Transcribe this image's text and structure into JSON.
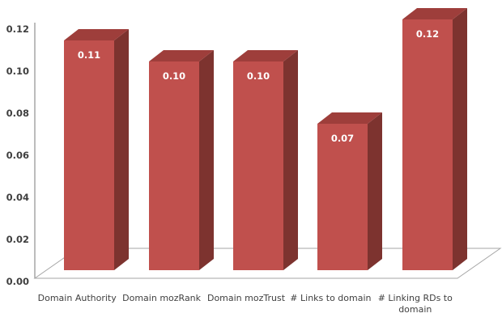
{
  "chart_data": {
    "type": "bar",
    "style": "3d-column",
    "title": "",
    "xlabel": "",
    "ylabel": "",
    "grid": false,
    "legend": "none",
    "categories": [
      "Domain Authority",
      "Domain mozRank",
      "Domain mozTrust",
      "# Links to domain",
      "# Linking RDs to domain"
    ],
    "category_label_lines": [
      [
        "Domain Authority"
      ],
      [
        "Domain mozRank"
      ],
      [
        "Domain mozTrust"
      ],
      [
        "# Links to domain"
      ],
      [
        "# Linking RDs to",
        "domain"
      ]
    ],
    "values": [
      0.11,
      0.1,
      0.1,
      0.07,
      0.12
    ],
    "value_labels": [
      "0.11",
      "0.10",
      "0.10",
      "0.07",
      "0.12"
    ],
    "ylim": [
      0,
      0.12
    ],
    "y_tick_values": [
      0,
      0.02,
      0.04,
      0.06,
      0.08,
      0.1,
      0.12
    ],
    "y_tick_labels": [
      "0.00",
      "0.02",
      "0.04",
      "0.06",
      "0.08",
      "0.10",
      "0.12"
    ],
    "colors": {
      "bar_front": "#c0504d",
      "bar_top": "#9e3e3b",
      "bar_side": "#7d332f",
      "axis_line": "#a6a6a6",
      "floor_line": "#a6a6a6",
      "tick_label": "#3f3f3f",
      "category_label": "#3f3f3f",
      "value_label": "#ffffff",
      "background": "#ffffff"
    }
  }
}
